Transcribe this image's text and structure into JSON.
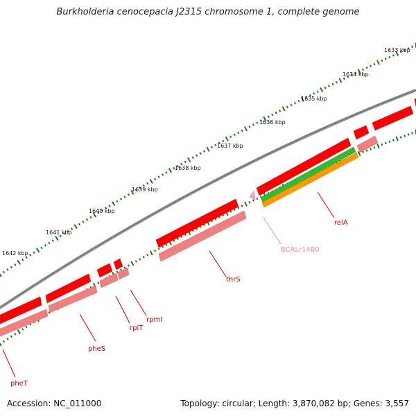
{
  "title": "Burkholderia cenocepacia J2315 chromosome 1, complete genome",
  "footer": {
    "accession": "Accession: NC_011000",
    "summary": "Topology: circular; Length: 3,870,082 bp; Genes: 3,557"
  },
  "colors": {
    "backbone": "#808080",
    "ruler": "#1a7a1a",
    "cds_forward": "#ff0000",
    "cds_shadow": "#f08080",
    "gene_label": "#cc0000",
    "rna": "#f4a0c0",
    "rna_label": "#e88ab5",
    "green_feature": "#33bb33",
    "orange_feature": "#ff9900"
  },
  "ruler": {
    "labels": [
      "1633 kbp",
      "1634 kbp",
      "1635 kbp",
      "1636 kbp",
      "1637 kbp",
      "1638 kbp",
      "1639 kbp",
      "1640 kbp",
      "1641 kbp",
      "1642 kbp"
    ]
  },
  "genes": [
    {
      "name": "relA",
      "type": "cds"
    },
    {
      "name": "BCALr1480",
      "type": "rna"
    },
    {
      "name": "thrS",
      "type": "cds"
    },
    {
      "name": "rpmI",
      "type": "cds"
    },
    {
      "name": "rplT",
      "type": "cds"
    },
    {
      "name": "pheS",
      "type": "cds"
    },
    {
      "name": "pheT",
      "type": "cds"
    }
  ]
}
